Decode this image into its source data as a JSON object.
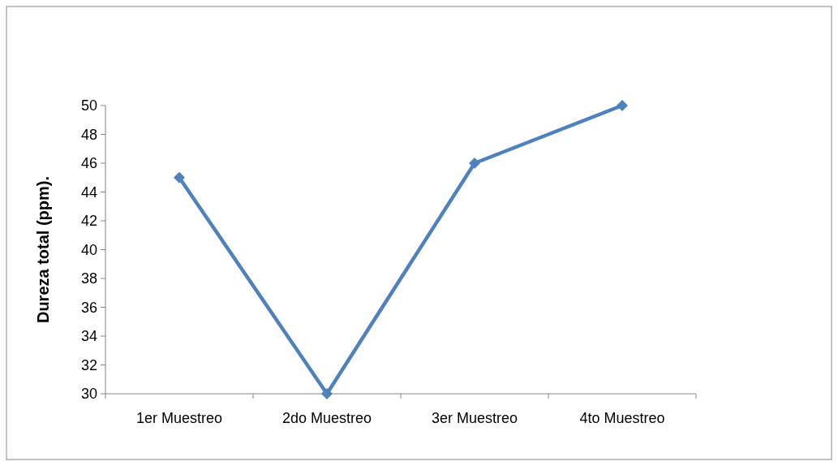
{
  "chart_data": {
    "type": "line",
    "ylabel": "Dureza total (ppm).",
    "categories": [
      "1er Muestreo",
      "2do Muestreo",
      "3er Muestreo",
      "4to Muestreo"
    ],
    "series": [
      {
        "color": "#4f81bd",
        "values": [
          45,
          30,
          46,
          50
        ]
      }
    ],
    "ylim": [
      30,
      50
    ],
    "yticks": [
      30,
      32,
      34,
      36,
      38,
      40,
      42,
      44,
      46,
      48,
      50
    ],
    "grid": false,
    "marker": "diamond",
    "line_style": "solid"
  }
}
